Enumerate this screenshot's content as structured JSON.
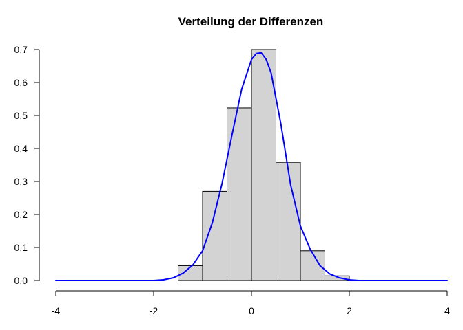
{
  "chart_data": {
    "type": "bar",
    "title": "Verteilung der Differenzen",
    "xlabel": "",
    "ylabel": "",
    "xlim": [
      -4,
      4
    ],
    "ylim": [
      0,
      0.7
    ],
    "x_ticks": [
      "-4",
      "-2",
      "0",
      "2",
      "4"
    ],
    "y_ticks": [
      "0.0",
      "0.1",
      "0.2",
      "0.3",
      "0.4",
      "0.5",
      "0.6",
      "0.7"
    ],
    "bins": [
      {
        "x0": -1.5,
        "x1": -1.0,
        "density": 0.045
      },
      {
        "x0": -1.0,
        "x1": -0.5,
        "density": 0.27
      },
      {
        "x0": -0.5,
        "x1": 0.0,
        "density": 0.523
      },
      {
        "x0": 0.0,
        "x1": 0.5,
        "density": 0.7
      },
      {
        "x0": 0.5,
        "x1": 1.0,
        "density": 0.358
      },
      {
        "x0": 1.0,
        "x1": 1.5,
        "density": 0.09
      },
      {
        "x0": 1.5,
        "x1": 2.0,
        "density": 0.014
      }
    ],
    "density_curve": {
      "x": [
        -4.0,
        -3.0,
        -2.0,
        -1.8,
        -1.6,
        -1.4,
        -1.2,
        -1.0,
        -0.8,
        -0.6,
        -0.4,
        -0.2,
        0.0,
        0.1,
        0.2,
        0.3,
        0.4,
        0.6,
        0.8,
        1.0,
        1.2,
        1.4,
        1.6,
        1.8,
        2.0,
        2.2,
        3.0,
        4.0
      ],
      "y": [
        0.0,
        0.0,
        0.0,
        0.002,
        0.008,
        0.022,
        0.047,
        0.09,
        0.175,
        0.295,
        0.44,
        0.58,
        0.67,
        0.688,
        0.69,
        0.67,
        0.63,
        0.475,
        0.29,
        0.165,
        0.095,
        0.045,
        0.02,
        0.008,
        0.002,
        0.0,
        0.0,
        0.0
      ]
    },
    "bar_fill": "#d3d3d3",
    "curve_color": "#0000ff",
    "grid": false
  }
}
